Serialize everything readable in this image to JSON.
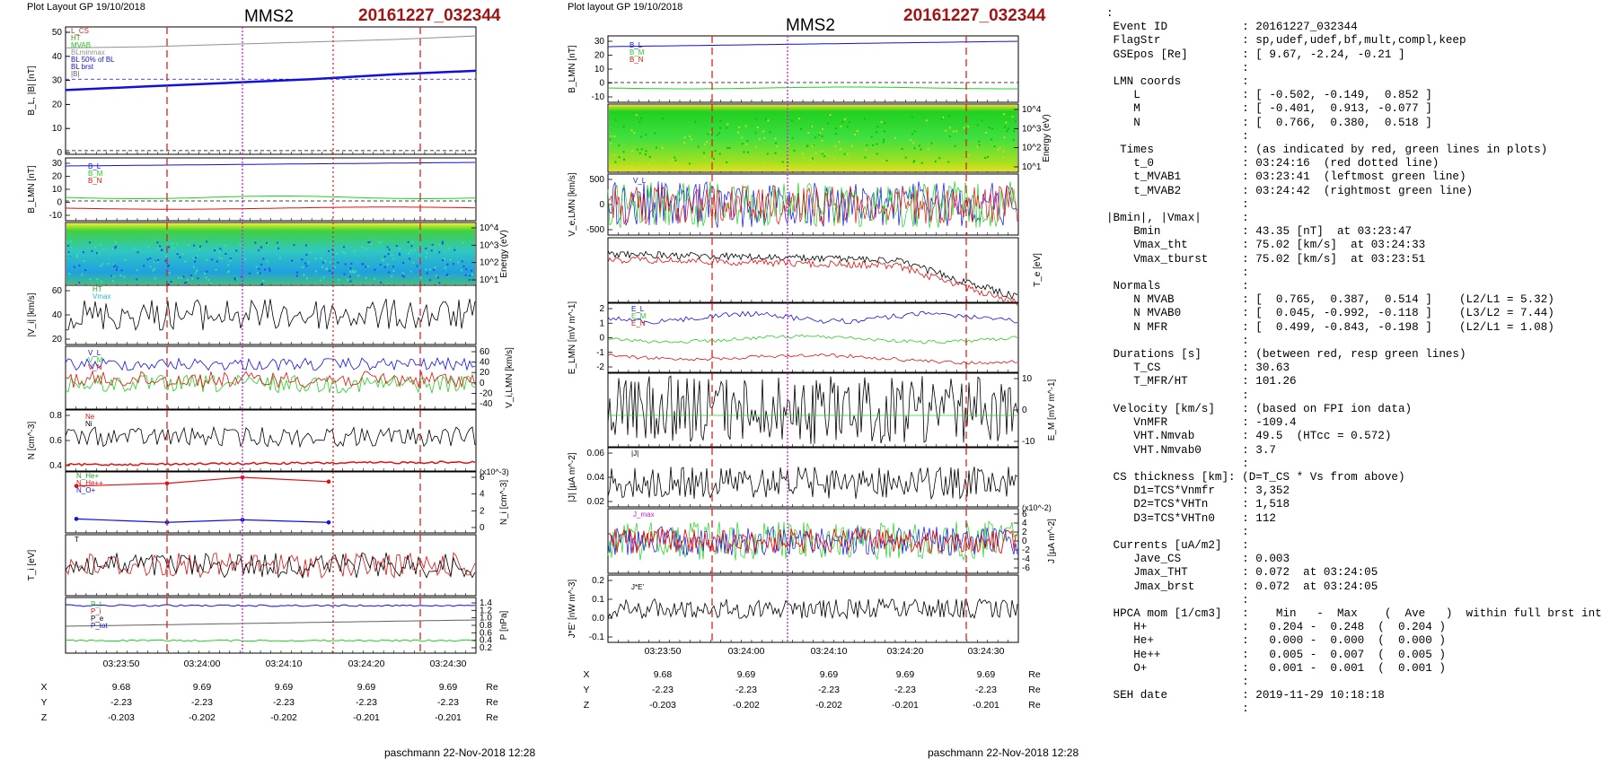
{
  "left_page": {
    "header": "Plot Layout GP 19/10/2018",
    "spacecraft": "MMS2",
    "event": "20161227_032344",
    "footer": "paschmann 22-Nov-2018 12:28"
  },
  "right_page": {
    "header": "Plot layout GP 19/10/2018",
    "spacecraft": "MMS2",
    "event": "20161227_032344",
    "footer": "paschmann 22-Nov-2018 12:28"
  },
  "time_axis": {
    "tick_labels": [
      "03:23:50",
      "03:24:00",
      "03:24:10",
      "03:24:20",
      "03:24:30"
    ]
  },
  "position_table": {
    "rows": [
      {
        "label": "X",
        "values": [
          "9.68",
          "9.69",
          "9.69",
          "9.69",
          "9.69"
        ],
        "unit": "Re"
      },
      {
        "label": "Y",
        "values": [
          "-2.23",
          "-2.23",
          "-2.23",
          "-2.23",
          "-2.23"
        ],
        "unit": "Re"
      },
      {
        "label": "Z",
        "values": [
          "-0.203",
          "-0.202",
          "-0.202",
          "-0.201",
          "-0.201"
        ],
        "unit": "Re"
      }
    ]
  },
  "colors": {
    "event_red": "#a01414",
    "vertical_red": "#e02020",
    "vertical_magenta": "#d020d0",
    "series_blue": "#1010e0",
    "series_green": "#20d020",
    "series_red": "#e01010",
    "series_black": "#000000",
    "series_gray": "#909090"
  },
  "text_panel": {
    "lines": [
      ":",
      " Event ID           : 20161227_032344",
      " FlagStr            : sp,udef,udef,bf,mult,compl,keep",
      " GSEpos [Re]        : [ 9.67, -2.24, -0.21 ]",
      "                    :",
      " LMN coords         :",
      "    L               : [ -0.502, -0.149,  0.852 ]",
      "    M               : [ -0.401,  0.913, -0.077 ]",
      "    N               : [  0.766,  0.380,  0.518 ]",
      "                    :",
      "  Times             : (as indicated by red, green lines in plots)",
      "    t_0             : 03:24:16  (red dotted line)",
      "    t_MVAB1         : 03:23:41  (leftmost green line)",
      "    t_MVAB2         : 03:24:42  (rightmost green line)",
      "                    :",
      "|Bmin|, |Vmax|      :",
      "    Bmin            : 43.35 [nT]  at 03:23:47",
      "    Vmax_tht        : 75.02 [km/s]  at 03:24:33",
      "    Vmax_tburst     : 75.02 [km/s]  at 03:23:51",
      "                    :",
      " Normals            :",
      "    N MVAB          : [  0.765,  0.387,  0.514 ]    (L2/L1 = 5.32)",
      "    N MVAB0         : [  0.045, -0.992, -0.118 ]    (L3/L2 = 7.44)",
      "    N MFR           : [  0.499, -0.843, -0.198 ]    (L2/L1 = 1.08)",
      "                    :",
      " Durations [s]      : (between red, resp green lines)",
      "    T_CS            : 30.63",
      "    T_MFR/HT        : 101.26",
      "                    :",
      " Velocity [km/s]    : (based on FPI ion data)",
      "    VnMFR           : -109.4",
      "    VHT.Nmvab       : 49.5  (HTcc = 0.572)",
      "    VHT.Nmvab0      : 3.7",
      "                    :",
      " CS thickness [km]: (D=T_CS * Vs from above)",
      "    D1=TCS*Vnmfr    : 3,352",
      "    D2=TCS*VHTn     : 1,518",
      "    D3=TCS*VHTn0    : 112",
      "                    :",
      " Currents [uA/m2]   :",
      "    Jave_CS         : 0.003",
      "    Jmax_THT        : 0.072  at 03:24:05",
      "    Jmax_brst       : 0.072  at 03:24:05",
      "                    :",
      " HPCA mom [1/cm3]   :    Min   -  Max    (  Ave   )  within full brst int",
      "    H+              :   0.204 -  0.248  (  0.204 )",
      "    He+             :   0.000 -  0.000  (  0.000 )",
      "    He++            :   0.005 -  0.007  (  0.005 )",
      "    O+              :   0.001 -  0.001  (  0.001 )",
      "                    :",
      " SEH date           : 2019-11-29 10:18:18",
      "                    :"
    ]
  },
  "chart_data": [
    {
      "type": "line",
      "panel": "left-1",
      "ylabel": "B_L, |B| [nT]",
      "yticks": [
        "50",
        "40",
        "30",
        "20",
        "10",
        "0"
      ],
      "ylim": [
        0,
        50
      ],
      "legend": [
        "L_CS",
        "HT",
        "MVAB",
        "BLminmax",
        "BL 50% of BL",
        "BL brst",
        "|B|"
      ],
      "series": [
        {
          "name": "|B|",
          "color": "#909090",
          "values": [
            43.5,
            44,
            45,
            46,
            47,
            48.5
          ]
        },
        {
          "name": "BL brst",
          "color": "#1010e0",
          "values": [
            26,
            27.5,
            29,
            30.5,
            32.5,
            34
          ]
        }
      ],
      "reference_lines": [
        30.5,
        0.5
      ]
    },
    {
      "type": "line",
      "panel": "left-2",
      "ylabel": "B_LMN [nT]",
      "yticks": [
        "30",
        "20",
        "10",
        "0",
        "-10"
      ],
      "legend": [
        "B_L",
        "B_M",
        "B_N"
      ]
    },
    {
      "type": "heatmap",
      "panel": "left-3",
      "ylabel": "Energy (eV)",
      "yticks": [
        "10^4",
        "10^3",
        "10^2",
        "10^1"
      ]
    },
    {
      "type": "line",
      "panel": "left-4",
      "ylabel": "|V_i| [km/s]",
      "yticks": [
        "60",
        "40",
        "20"
      ],
      "legend": [
        "HT",
        "Vmax"
      ]
    },
    {
      "type": "line",
      "panel": "left-5",
      "ylabel": "V_i,LMN [km/s]",
      "yticks": [
        "60",
        "40",
        "20",
        "0",
        "-20",
        "-40"
      ],
      "legend": [
        "V_L",
        "V_M",
        "V_N"
      ]
    },
    {
      "type": "line",
      "panel": "left-6",
      "ylabel": "N [cm^-3]",
      "yticks": [
        "0.8",
        "0.6",
        "0.4"
      ],
      "legend": [
        "Ne",
        "Ni"
      ]
    },
    {
      "type": "line",
      "panel": "left-7",
      "ylabel": "N_i [cm^-3]",
      "multiplier": "(x10^-3)",
      "yticks": [
        "6",
        "4",
        "2",
        "0"
      ],
      "legend": [
        "N_He+",
        "N_He++",
        "N_O+"
      ],
      "series": [
        {
          "name": "N_He++",
          "color": "#e01010",
          "values": [
            5,
            5.3,
            6,
            5.5
          ]
        },
        {
          "name": "N_O+",
          "color": "#1010e0",
          "values": [
            1.2,
            0.8,
            1.1,
            0.8
          ]
        }
      ]
    },
    {
      "type": "line",
      "panel": "left-8",
      "ylabel": "T_i [eV]",
      "legend": [
        "T"
      ]
    },
    {
      "type": "line",
      "panel": "left-9",
      "ylabel": "P [nPa]",
      "yticks": [
        "1.4",
        "1.2",
        "1.0",
        "0.8",
        "0.6",
        "0.4",
        "0.2"
      ],
      "legend": [
        "P_t",
        "P_i",
        "P_e",
        "P_tot"
      ]
    },
    {
      "type": "line",
      "panel": "right-1",
      "ylabel": "B_LMN [nT]",
      "yticks": [
        "30",
        "20",
        "10",
        "0",
        "-10"
      ],
      "legend": [
        "B_L",
        "B_M",
        "B_N"
      ]
    },
    {
      "type": "heatmap",
      "panel": "right-2",
      "ylabel": "Energy (eV)",
      "yticks": [
        "10^4",
        "10^3",
        "10^2",
        "10^1"
      ]
    },
    {
      "type": "line",
      "panel": "right-3",
      "ylabel": "V_e,LMN [km/s]",
      "yticks": [
        "500",
        "0",
        "-500"
      ],
      "legend": [
        "V_L"
      ]
    },
    {
      "type": "line",
      "panel": "right-4",
      "ylabel": "T_e [eV]"
    },
    {
      "type": "line",
      "panel": "right-5",
      "ylabel": "E_LMN [mV m^-1]",
      "yticks": [
        "2",
        "1",
        "0",
        "-1",
        "-2"
      ],
      "legend": [
        "E_L",
        "E_M",
        "E_N"
      ]
    },
    {
      "type": "line",
      "panel": "right-6",
      "ylabel": "E_M [mV m^-1]",
      "yticks": [
        "10",
        "0",
        "-10"
      ]
    },
    {
      "type": "line",
      "panel": "right-7",
      "ylabel": "|J| [µA m^-2]",
      "yticks": [
        "0.06",
        "0.04",
        "0.02"
      ],
      "legend": [
        "|J|"
      ]
    },
    {
      "type": "line",
      "panel": "right-8",
      "ylabel": "J [µA m^-2]",
      "multiplier": "(x10^-2)",
      "yticks": [
        "6",
        "4",
        "2",
        "0",
        "-2",
        "-4",
        "-6"
      ],
      "legend": [
        "J_max"
      ]
    },
    {
      "type": "line",
      "panel": "right-9",
      "ylabel": "J*E' [nW m^-3]",
      "yticks": [
        "0.2",
        "0.1",
        "0.0",
        "-0.1"
      ],
      "legend": [
        "J*E'"
      ]
    }
  ]
}
